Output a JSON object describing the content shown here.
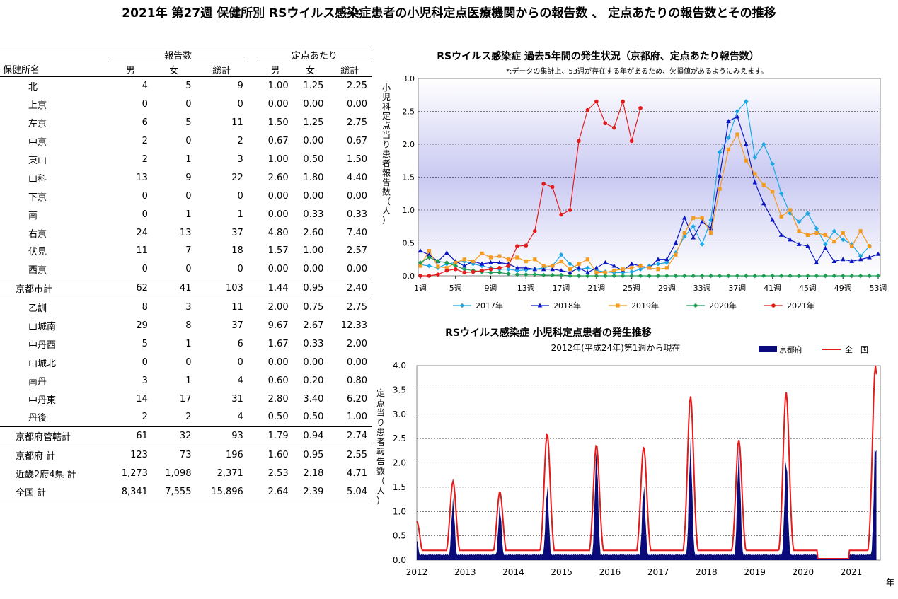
{
  "page_title": "2021年 第27週 保健所別 RSウイルス感染症患者の小児科定点医療機関からの報告数 、 定点あたりの報告数とその推移",
  "table": {
    "group_headers": [
      "報告数",
      "定点あたり"
    ],
    "col_headers": [
      "保健所名",
      "男",
      "女",
      "総計",
      "男",
      "女",
      "総計"
    ],
    "rows": [
      {
        "name": "北",
        "kind": "item",
        "c": [
          "4",
          "5",
          "9",
          "1.00",
          "1.25",
          "2.25"
        ]
      },
      {
        "name": "上京",
        "kind": "item",
        "c": [
          "0",
          "0",
          "0",
          "0.00",
          "0.00",
          "0.00"
        ]
      },
      {
        "name": "左京",
        "kind": "item",
        "c": [
          "6",
          "5",
          "11",
          "1.50",
          "1.25",
          "2.75"
        ]
      },
      {
        "name": "中京",
        "kind": "item",
        "c": [
          "2",
          "0",
          "2",
          "0.67",
          "0.00",
          "0.67"
        ]
      },
      {
        "name": "東山",
        "kind": "item",
        "c": [
          "2",
          "1",
          "3",
          "1.00",
          "0.50",
          "1.50"
        ]
      },
      {
        "name": "山科",
        "kind": "item",
        "c": [
          "13",
          "9",
          "22",
          "2.60",
          "1.80",
          "4.40"
        ]
      },
      {
        "name": "下京",
        "kind": "item",
        "c": [
          "0",
          "0",
          "0",
          "0.00",
          "0.00",
          "0.00"
        ]
      },
      {
        "name": "南",
        "kind": "item",
        "c": [
          "0",
          "1",
          "1",
          "0.00",
          "0.33",
          "0.33"
        ]
      },
      {
        "name": "右京",
        "kind": "item",
        "c": [
          "24",
          "13",
          "37",
          "4.80",
          "2.60",
          "7.40"
        ]
      },
      {
        "name": "伏見",
        "kind": "item",
        "c": [
          "11",
          "7",
          "18",
          "1.57",
          "1.00",
          "2.57"
        ]
      },
      {
        "name": "西京",
        "kind": "item",
        "c": [
          "0",
          "0",
          "0",
          "0.00",
          "0.00",
          "0.00"
        ]
      },
      {
        "name": "京都市計",
        "kind": "subtotal",
        "c": [
          "62",
          "41",
          "103",
          "1.44",
          "0.95",
          "2.40"
        ]
      },
      {
        "name": "乙訓",
        "kind": "item",
        "c": [
          "8",
          "3",
          "11",
          "2.00",
          "0.75",
          "2.75"
        ]
      },
      {
        "name": "山城南",
        "kind": "item",
        "c": [
          "29",
          "8",
          "37",
          "9.67",
          "2.67",
          "12.33"
        ]
      },
      {
        "name": "中丹西",
        "kind": "item",
        "c": [
          "5",
          "1",
          "6",
          "1.67",
          "0.33",
          "2.00"
        ]
      },
      {
        "name": "山城北",
        "kind": "item",
        "c": [
          "0",
          "0",
          "0",
          "0.00",
          "0.00",
          "0.00"
        ]
      },
      {
        "name": "南丹",
        "kind": "item",
        "c": [
          "3",
          "1",
          "4",
          "0.60",
          "0.20",
          "0.80"
        ]
      },
      {
        "name": "中丹東",
        "kind": "item",
        "c": [
          "14",
          "17",
          "31",
          "2.80",
          "3.40",
          "6.20"
        ]
      },
      {
        "name": "丹後",
        "kind": "item",
        "c": [
          "2",
          "2",
          "4",
          "0.50",
          "0.50",
          "1.00"
        ]
      },
      {
        "name": "京都府管轄計",
        "kind": "subtotal",
        "c": [
          "61",
          "32",
          "93",
          "1.79",
          "0.94",
          "2.74"
        ]
      },
      {
        "name": "京都府 計",
        "kind": "total",
        "c": [
          "123",
          "73",
          "196",
          "1.60",
          "0.95",
          "2.55"
        ]
      },
      {
        "name": "近畿2府4県 計",
        "kind": "total",
        "c": [
          "1,273",
          "1,098",
          "2,371",
          "2.53",
          "2.18",
          "4.71"
        ]
      },
      {
        "name": "全国 計",
        "kind": "total",
        "c": [
          "8,341",
          "7,555",
          "15,896",
          "2.64",
          "2.39",
          "5.04"
        ]
      }
    ]
  },
  "chart_data": [
    {
      "type": "line",
      "title": "RSウイルス感染症 過去5年間の発生状況（京都府、定点あたり報告数）",
      "note": "*:データの集計上、53週が存在する年があるため、欠損値があるようにみえます。",
      "ylabel": "小児科定点当り患者報告数（人）",
      "ylim": [
        0,
        3.0
      ],
      "yticks": [
        "0.0",
        "0.5",
        "1.0",
        "1.5",
        "2.0",
        "2.5",
        "3.0"
      ],
      "xticks": [
        "1週",
        "5週",
        "9週",
        "13週",
        "17週",
        "21週",
        "25週",
        "29週",
        "33週",
        "37週",
        "41週",
        "45週",
        "49週",
        "53週"
      ],
      "colors": {
        "2017年": "#1aa7e6",
        "2018年": "#0a16c4",
        "2019年": "#f59a1c",
        "2020年": "#1f9d55",
        "2021年": "#e31b1b"
      },
      "series": [
        {
          "name": "2017年",
          "values": [
            0.17,
            0.15,
            0.12,
            0.18,
            0.2,
            0.22,
            0.18,
            0.15,
            0.12,
            0.1,
            0.1,
            0.08,
            0.09,
            0.1,
            0.12,
            0.15,
            0.32,
            0.18,
            0.1,
            0.12,
            0.08,
            0.06,
            0.05,
            0.05,
            0.06,
            0.1,
            0.15,
            0.18,
            0.2,
            0.35,
            0.6,
            0.75,
            0.48,
            0.85,
            1.88,
            2.1,
            2.5,
            2.65,
            1.8,
            2.0,
            1.7,
            1.25,
            0.95,
            0.82,
            0.95,
            0.72,
            0.48,
            0.68,
            0.55,
            0.48,
            0.3,
            0.45,
            null
          ]
        },
        {
          "name": "2018年",
          "values": [
            0.38,
            0.32,
            0.22,
            0.35,
            0.22,
            0.15,
            0.22,
            0.18,
            0.2,
            0.2,
            0.18,
            0.12,
            0.12,
            0.1,
            0.1,
            0.1,
            0.08,
            0.05,
            0.12,
            0.05,
            0.12,
            0.2,
            0.15,
            0.08,
            0.18,
            0.15,
            0.12,
            0.25,
            0.25,
            0.5,
            0.88,
            0.58,
            0.82,
            0.72,
            1.52,
            2.35,
            2.42,
            2.0,
            1.42,
            1.1,
            0.85,
            0.62,
            0.55,
            0.48,
            0.45,
            0.2,
            0.42,
            0.22,
            0.25,
            0.22,
            0.25,
            0.28,
            0.33
          ]
        },
        {
          "name": "2019年",
          "values": [
            0.15,
            0.38,
            0.14,
            0.12,
            0.2,
            0.25,
            0.22,
            0.34,
            0.28,
            0.3,
            0.25,
            0.28,
            0.22,
            0.25,
            0.15,
            0.15,
            0.22,
            0.1,
            0.18,
            0.25,
            0.05,
            0.05,
            0.08,
            0.1,
            0.12,
            0.15,
            0.12,
            0.1,
            0.12,
            0.32,
            0.65,
            0.88,
            0.88,
            0.65,
            1.32,
            1.92,
            2.15,
            1.75,
            1.55,
            1.38,
            1.28,
            0.9,
            1.0,
            0.68,
            0.62,
            0.65,
            0.62,
            0.52,
            0.65,
            0.45,
            0.68,
            0.45,
            null
          ]
        },
        {
          "name": "2020年",
          "values": [
            0.2,
            0.28,
            0.22,
            0.2,
            0.15,
            0.1,
            0.08,
            0.06,
            0.05,
            0.05,
            0.03,
            0.02,
            0.02,
            0.02,
            0.01,
            0.01,
            0.01,
            0,
            0,
            0,
            0,
            0,
            0,
            0,
            0,
            0,
            0,
            0,
            0,
            0,
            0,
            0,
            0,
            0,
            0,
            0,
            0,
            0,
            0,
            0,
            0,
            0,
            0,
            0,
            0,
            0,
            0,
            0,
            0,
            0,
            0,
            0,
            0
          ]
        },
        {
          "name": "2021年",
          "values": [
            0,
            0,
            0.02,
            0.08,
            0.1,
            0.05,
            0.06,
            0.08,
            0.1,
            0.12,
            0.15,
            0.45,
            0.46,
            0.68,
            1.4,
            1.35,
            0.93,
            1.0,
            2.05,
            2.52,
            2.65,
            2.32,
            2.25,
            2.65,
            2.05,
            2.55
          ]
        }
      ]
    },
    {
      "type": "area",
      "title": "RSウイルス感染症 小児科定点患者の発生推移",
      "subtitle": "2012年(平成24年)第1週から現在",
      "ylabel": "定点当り患者報告数（人）",
      "xlabel": "年",
      "ylim": [
        0,
        4.0
      ],
      "yticks": [
        "0.0",
        "0.5",
        "1.0",
        "1.5",
        "2.0",
        "2.5",
        "3.0",
        "3.5",
        "4.0"
      ],
      "xticks": [
        "2012",
        "2013",
        "2014",
        "2015",
        "2016",
        "2017",
        "2018",
        "2019",
        "2020",
        "2021"
      ],
      "colors": {
        "京都府": "#0a0a7a",
        "全国": "#e31b1b"
      },
      "series": [
        {
          "name": "京都府",
          "kind": "area",
          "peaks": [
            {
              "year": 2012.0,
              "v": 0.45
            },
            {
              "year": 2012.75,
              "v": 1.3
            },
            {
              "year": 2013.72,
              "v": 1.15
            },
            {
              "year": 2014.7,
              "v": 1.6
            },
            {
              "year": 2015.72,
              "v": 2.35
            },
            {
              "year": 2016.7,
              "v": 1.6
            },
            {
              "year": 2017.67,
              "v": 2.55
            },
            {
              "year": 2018.67,
              "v": 2.4
            },
            {
              "year": 2019.65,
              "v": 2.25
            },
            {
              "year": 2021.5,
              "v": 2.62
            }
          ]
        },
        {
          "name": "全　国",
          "kind": "line",
          "peaks": [
            {
              "year": 2012.0,
              "v": 0.8
            },
            {
              "year": 2012.75,
              "v": 1.62
            },
            {
              "year": 2013.72,
              "v": 1.4
            },
            {
              "year": 2014.7,
              "v": 2.6
            },
            {
              "year": 2015.72,
              "v": 2.37
            },
            {
              "year": 2016.7,
              "v": 2.33
            },
            {
              "year": 2017.67,
              "v": 3.37
            },
            {
              "year": 2018.67,
              "v": 2.47
            },
            {
              "year": 2019.65,
              "v": 3.45
            },
            {
              "year": 2021.5,
              "v": 4.0
            }
          ]
        }
      ]
    }
  ]
}
